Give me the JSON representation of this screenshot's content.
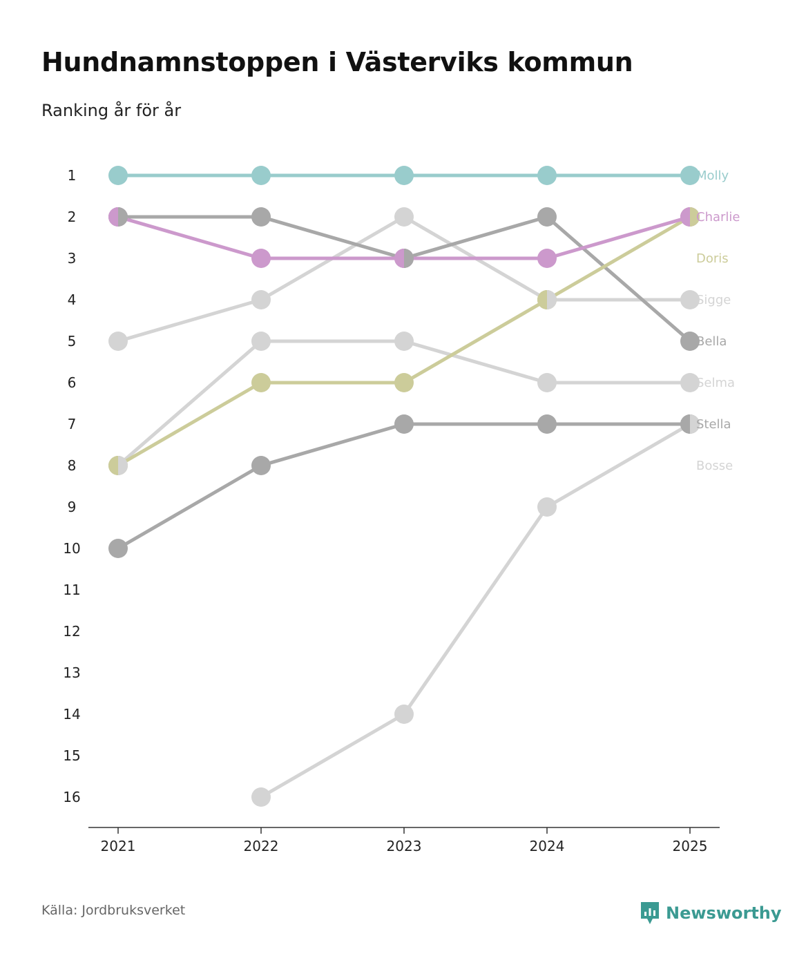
{
  "title": "Hundnamnstoppen i Västerviks kommun",
  "subtitle": "Ranking år för år",
  "source": "Källa: Jordbruksverket",
  "brand": "Newsworthy",
  "brand_color": "#3b9a92",
  "chart_data": {
    "type": "line",
    "title": "Hundnamnstoppen i Västerviks kommun",
    "subtitle": "Ranking år för år",
    "xlabel": "",
    "ylabel": "",
    "categories": [
      "2021",
      "2022",
      "2023",
      "2024",
      "2025"
    ],
    "y_ticks": [
      "1",
      "2",
      "3",
      "4",
      "5",
      "6",
      "7",
      "8",
      "9",
      "10",
      "11",
      "12",
      "13",
      "14",
      "15",
      "16"
    ],
    "ylim": [
      1,
      16
    ],
    "y_inverted": true,
    "grid": false,
    "series": [
      {
        "name": "Bosse",
        "color": "#d4d4d4",
        "values": [
          null,
          16,
          14,
          9,
          7
        ]
      },
      {
        "name": "Selma",
        "color": "#d4d4d4",
        "values": [
          8,
          5,
          5,
          6,
          6
        ]
      },
      {
        "name": "Sigge",
        "color": "#d4d4d4",
        "values": [
          5,
          4,
          2,
          4,
          4
        ]
      },
      {
        "name": "Stella",
        "color": "#a8a8a8",
        "values": [
          10,
          8,
          7,
          7,
          7
        ]
      },
      {
        "name": "Bella",
        "color": "#a8a8a8",
        "values": [
          2,
          2,
          3,
          2,
          5
        ]
      },
      {
        "name": "Doris",
        "color": "#cccc9a",
        "values": [
          8,
          6,
          6,
          4,
          2
        ]
      },
      {
        "name": "Charlie",
        "color": "#cc99cc",
        "values": [
          2,
          3,
          3,
          3,
          2
        ]
      },
      {
        "name": "Molly",
        "color": "#99cccc",
        "values": [
          1,
          1,
          1,
          1,
          1
        ]
      }
    ],
    "end_labels": [
      {
        "name": "Molly",
        "rank": 1,
        "color": "#99cccc"
      },
      {
        "name": "Charlie",
        "rank": 2,
        "color": "#cc99cc"
      },
      {
        "name": "Doris",
        "rank": 3,
        "color": "#cccc9a"
      },
      {
        "name": "Sigge",
        "rank": 4,
        "color": "#d4d4d4"
      },
      {
        "name": "Bella",
        "rank": 5,
        "color": "#a8a8a8"
      },
      {
        "name": "Selma",
        "rank": 6,
        "color": "#d4d4d4"
      },
      {
        "name": "Stella",
        "rank": 7,
        "color": "#a8a8a8"
      },
      {
        "name": "Bosse",
        "rank": 8,
        "color": "#d4d4d4"
      }
    ]
  }
}
